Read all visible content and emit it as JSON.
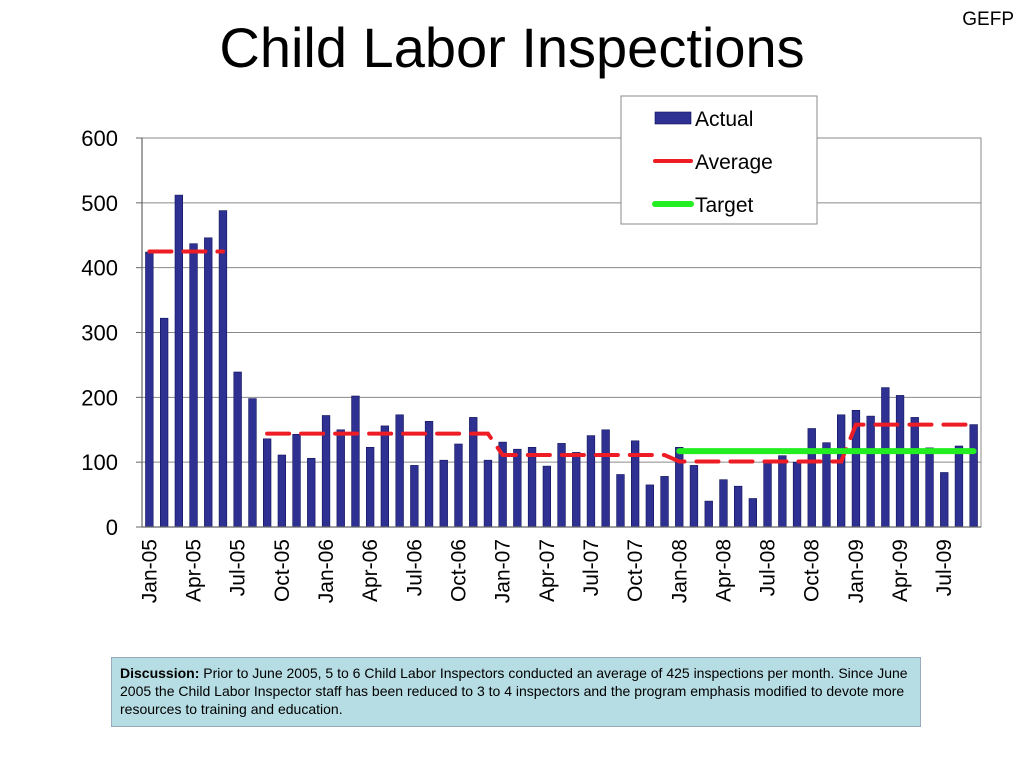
{
  "slide": {
    "corner_tag": "GEFP",
    "title": "Child Labor Inspections",
    "discussion_label": "Discussion:",
    "discussion_text": " Prior to June 2005, 5 to 6 Child Labor Inspectors conducted an average of 425 inspections per month.  Since June 2005 the Child Labor Inspector staff has been reduced to 3 to 4 inspectors and the program emphasis modified to devote more resources to training and education."
  },
  "chart_data": {
    "type": "bar",
    "title": "",
    "xlabel": "",
    "ylabel": "",
    "ylim": [
      0,
      600
    ],
    "yticks": [
      0,
      100,
      200,
      300,
      400,
      500,
      600
    ],
    "grid": true,
    "legend_placement": "top-right",
    "categories": [
      "Jan-05",
      "Feb-05",
      "Mar-05",
      "Apr-05",
      "May-05",
      "Jun-05",
      "Jul-05",
      "Aug-05",
      "Sep-05",
      "Oct-05",
      "Nov-05",
      "Dec-05",
      "Jan-06",
      "Feb-06",
      "Mar-06",
      "Apr-06",
      "May-06",
      "Jun-06",
      "Jul-06",
      "Aug-06",
      "Sep-06",
      "Oct-06",
      "Nov-06",
      "Dec-06",
      "Jan-07",
      "Feb-07",
      "Mar-07",
      "Apr-07",
      "May-07",
      "Jun-07",
      "Jul-07",
      "Aug-07",
      "Sep-07",
      "Oct-07",
      "Nov-07",
      "Dec-07",
      "Jan-08",
      "Feb-08",
      "Mar-08",
      "Apr-08",
      "May-08",
      "Jun-08",
      "Jul-08",
      "Aug-08",
      "Sep-08",
      "Oct-08",
      "Nov-08",
      "Dec-08",
      "Jan-09",
      "Feb-09",
      "Mar-09",
      "Apr-09",
      "May-09",
      "Jun-09",
      "Jul-09",
      "Aug-09",
      "Sep-09"
    ],
    "tick_labels": [
      "Jan-05",
      "Apr-05",
      "Jul-05",
      "Oct-05",
      "Jan-06",
      "Apr-06",
      "Jul-06",
      "Oct-06",
      "Jan-07",
      "Apr-07",
      "Jul-07",
      "Oct-07",
      "Jan-08",
      "Apr-08",
      "Jul-08",
      "Oct-08",
      "Jan-09",
      "Apr-09",
      "Jul-09"
    ],
    "series": [
      {
        "name": "Actual",
        "kind": "bar",
        "color": "#2e3192",
        "values": [
          424,
          322,
          512,
          437,
          446,
          488,
          239,
          198,
          136,
          111,
          143,
          106,
          172,
          150,
          202,
          123,
          156,
          173,
          95,
          163,
          103,
          128,
          169,
          103,
          131,
          120,
          123,
          94,
          129,
          115,
          141,
          150,
          81,
          133,
          65,
          78,
          123,
          95,
          40,
          73,
          63,
          44,
          100,
          110,
          100,
          152,
          130,
          173,
          180,
          171,
          215,
          203,
          169,
          122,
          84,
          125,
          158
        ]
      },
      {
        "name": "Average",
        "kind": "line",
        "color": "#ee1c24",
        "values": [
          425,
          425,
          425,
          425,
          425,
          425,
          null,
          null,
          144,
          144,
          144,
          144,
          144,
          144,
          144,
          144,
          144,
          144,
          144,
          144,
          144,
          144,
          144,
          144,
          111,
          111,
          111,
          111,
          111,
          111,
          111,
          111,
          111,
          111,
          111,
          111,
          101,
          101,
          101,
          101,
          101,
          101,
          101,
          101,
          101,
          101,
          101,
          101,
          158,
          158,
          158,
          158,
          158,
          158,
          158,
          158,
          158
        ]
      },
      {
        "name": "Target",
        "kind": "line",
        "color": "#22ee22",
        "values": [
          null,
          null,
          null,
          null,
          null,
          null,
          null,
          null,
          null,
          null,
          null,
          null,
          null,
          null,
          null,
          null,
          null,
          null,
          null,
          null,
          null,
          null,
          null,
          null,
          null,
          null,
          null,
          null,
          null,
          null,
          null,
          null,
          null,
          null,
          null,
          null,
          117,
          117,
          117,
          117,
          117,
          117,
          117,
          117,
          117,
          117,
          117,
          117,
          117,
          117,
          117,
          117,
          117,
          117,
          117,
          117,
          117
        ]
      }
    ]
  }
}
